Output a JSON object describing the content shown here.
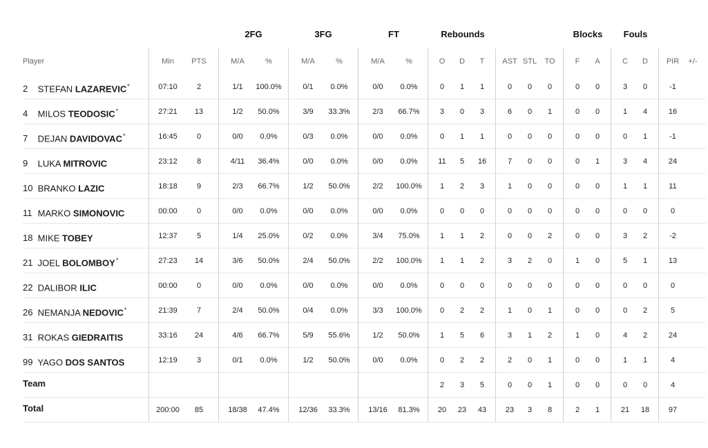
{
  "groups": {
    "fg2": "2FG",
    "fg3": "3FG",
    "ft": "FT",
    "rebounds": "Rebounds",
    "blocks": "Blocks",
    "fouls": "Fouls"
  },
  "columns": {
    "player": "Player",
    "min": "Min",
    "pts": "PTS",
    "fg2_ma": "M/A",
    "fg2_pct": "%",
    "fg3_ma": "M/A",
    "fg3_pct": "%",
    "ft_ma": "M/A",
    "ft_pct": "%",
    "reb_o": "O",
    "reb_d": "D",
    "reb_t": "T",
    "ast": "AST",
    "stl": "STL",
    "to": "TO",
    "blk_f": "F",
    "blk_a": "A",
    "foul_c": "C",
    "foul_d": "D",
    "pir": "PIR",
    "pm": "+/-"
  },
  "players": [
    {
      "num": "2",
      "first": "STEFAN",
      "last": "LAZAREVIC",
      "star": "*",
      "min": "07:10",
      "pts": "2",
      "fg2_ma": "1/1",
      "fg2_pct": "100.0%",
      "fg3_ma": "0/1",
      "fg3_pct": "0.0%",
      "ft_ma": "0/0",
      "ft_pct": "0.0%",
      "reb_o": "0",
      "reb_d": "1",
      "reb_t": "1",
      "ast": "0",
      "stl": "0",
      "to": "0",
      "blk_f": "0",
      "blk_a": "0",
      "foul_c": "3",
      "foul_d": "0",
      "pir": "-1",
      "pm": ""
    },
    {
      "num": "4",
      "first": "MILOS",
      "last": "TEODOSIC",
      "star": "*",
      "min": "27:21",
      "pts": "13",
      "fg2_ma": "1/2",
      "fg2_pct": "50.0%",
      "fg3_ma": "3/9",
      "fg3_pct": "33.3%",
      "ft_ma": "2/3",
      "ft_pct": "66.7%",
      "reb_o": "3",
      "reb_d": "0",
      "reb_t": "3",
      "ast": "6",
      "stl": "0",
      "to": "1",
      "blk_f": "0",
      "blk_a": "0",
      "foul_c": "1",
      "foul_d": "4",
      "pir": "16",
      "pm": ""
    },
    {
      "num": "7",
      "first": "DEJAN",
      "last": "DAVIDOVAC",
      "star": "*",
      "min": "16:45",
      "pts": "0",
      "fg2_ma": "0/0",
      "fg2_pct": "0.0%",
      "fg3_ma": "0/3",
      "fg3_pct": "0.0%",
      "ft_ma": "0/0",
      "ft_pct": "0.0%",
      "reb_o": "0",
      "reb_d": "1",
      "reb_t": "1",
      "ast": "0",
      "stl": "0",
      "to": "0",
      "blk_f": "0",
      "blk_a": "0",
      "foul_c": "0",
      "foul_d": "1",
      "pir": "-1",
      "pm": ""
    },
    {
      "num": "9",
      "first": "LUKA",
      "last": "MITROVIC",
      "star": "",
      "min": "23:12",
      "pts": "8",
      "fg2_ma": "4/11",
      "fg2_pct": "36.4%",
      "fg3_ma": "0/0",
      "fg3_pct": "0.0%",
      "ft_ma": "0/0",
      "ft_pct": "0.0%",
      "reb_o": "11",
      "reb_d": "5",
      "reb_t": "16",
      "ast": "7",
      "stl": "0",
      "to": "0",
      "blk_f": "0",
      "blk_a": "1",
      "foul_c": "3",
      "foul_d": "4",
      "pir": "24",
      "pm": ""
    },
    {
      "num": "10",
      "first": "BRANKO",
      "last": "LAZIC",
      "star": "",
      "min": "18:18",
      "pts": "9",
      "fg2_ma": "2/3",
      "fg2_pct": "66.7%",
      "fg3_ma": "1/2",
      "fg3_pct": "50.0%",
      "ft_ma": "2/2",
      "ft_pct": "100.0%",
      "reb_o": "1",
      "reb_d": "2",
      "reb_t": "3",
      "ast": "1",
      "stl": "0",
      "to": "0",
      "blk_f": "0",
      "blk_a": "0",
      "foul_c": "1",
      "foul_d": "1",
      "pir": "11",
      "pm": ""
    },
    {
      "num": "11",
      "first": "MARKO",
      "last": "SIMONOVIC",
      "star": "",
      "min": "00:00",
      "pts": "0",
      "fg2_ma": "0/0",
      "fg2_pct": "0.0%",
      "fg3_ma": "0/0",
      "fg3_pct": "0.0%",
      "ft_ma": "0/0",
      "ft_pct": "0.0%",
      "reb_o": "0",
      "reb_d": "0",
      "reb_t": "0",
      "ast": "0",
      "stl": "0",
      "to": "0",
      "blk_f": "0",
      "blk_a": "0",
      "foul_c": "0",
      "foul_d": "0",
      "pir": "0",
      "pm": ""
    },
    {
      "num": "18",
      "first": "MIKE",
      "last": "TOBEY",
      "star": "",
      "min": "12:37",
      "pts": "5",
      "fg2_ma": "1/4",
      "fg2_pct": "25.0%",
      "fg3_ma": "0/2",
      "fg3_pct": "0.0%",
      "ft_ma": "3/4",
      "ft_pct": "75.0%",
      "reb_o": "1",
      "reb_d": "1",
      "reb_t": "2",
      "ast": "0",
      "stl": "0",
      "to": "2",
      "blk_f": "0",
      "blk_a": "0",
      "foul_c": "3",
      "foul_d": "2",
      "pir": "-2",
      "pm": ""
    },
    {
      "num": "21",
      "first": "JOEL",
      "last": "BOLOMBOY",
      "star": "*",
      "min": "27:23",
      "pts": "14",
      "fg2_ma": "3/6",
      "fg2_pct": "50.0%",
      "fg3_ma": "2/4",
      "fg3_pct": "50.0%",
      "ft_ma": "2/2",
      "ft_pct": "100.0%",
      "reb_o": "1",
      "reb_d": "1",
      "reb_t": "2",
      "ast": "3",
      "stl": "2",
      "to": "0",
      "blk_f": "1",
      "blk_a": "0",
      "foul_c": "5",
      "foul_d": "1",
      "pir": "13",
      "pm": ""
    },
    {
      "num": "22",
      "first": "DALIBOR",
      "last": "ILIC",
      "star": "",
      "min": "00:00",
      "pts": "0",
      "fg2_ma": "0/0",
      "fg2_pct": "0.0%",
      "fg3_ma": "0/0",
      "fg3_pct": "0.0%",
      "ft_ma": "0/0",
      "ft_pct": "0.0%",
      "reb_o": "0",
      "reb_d": "0",
      "reb_t": "0",
      "ast": "0",
      "stl": "0",
      "to": "0",
      "blk_f": "0",
      "blk_a": "0",
      "foul_c": "0",
      "foul_d": "0",
      "pir": "0",
      "pm": ""
    },
    {
      "num": "26",
      "first": "NEMANJA",
      "last": "NEDOVIC",
      "star": "*",
      "min": "21:39",
      "pts": "7",
      "fg2_ma": "2/4",
      "fg2_pct": "50.0%",
      "fg3_ma": "0/4",
      "fg3_pct": "0.0%",
      "ft_ma": "3/3",
      "ft_pct": "100.0%",
      "reb_o": "0",
      "reb_d": "2",
      "reb_t": "2",
      "ast": "1",
      "stl": "0",
      "to": "1",
      "blk_f": "0",
      "blk_a": "0",
      "foul_c": "0",
      "foul_d": "2",
      "pir": "5",
      "pm": ""
    },
    {
      "num": "31",
      "first": "ROKAS",
      "last": "GIEDRAITIS",
      "star": "",
      "min": "33:16",
      "pts": "24",
      "fg2_ma": "4/6",
      "fg2_pct": "66.7%",
      "fg3_ma": "5/9",
      "fg3_pct": "55.6%",
      "ft_ma": "1/2",
      "ft_pct": "50.0%",
      "reb_o": "1",
      "reb_d": "5",
      "reb_t": "6",
      "ast": "3",
      "stl": "1",
      "to": "2",
      "blk_f": "1",
      "blk_a": "0",
      "foul_c": "4",
      "foul_d": "2",
      "pir": "24",
      "pm": ""
    },
    {
      "num": "99",
      "first": "YAGO",
      "last": "DOS SANTOS",
      "star": "",
      "min": "12:19",
      "pts": "3",
      "fg2_ma": "0/1",
      "fg2_pct": "0.0%",
      "fg3_ma": "1/2",
      "fg3_pct": "50.0%",
      "ft_ma": "0/0",
      "ft_pct": "0.0%",
      "reb_o": "0",
      "reb_d": "2",
      "reb_t": "2",
      "ast": "2",
      "stl": "0",
      "to": "1",
      "blk_f": "0",
      "blk_a": "0",
      "foul_c": "1",
      "foul_d": "1",
      "pir": "4",
      "pm": ""
    }
  ],
  "team": {
    "label": "Team",
    "reb_o": "2",
    "reb_d": "3",
    "reb_t": "5",
    "ast": "0",
    "stl": "0",
    "to": "1",
    "blk_f": "0",
    "blk_a": "0",
    "foul_c": "0",
    "foul_d": "0",
    "pir": "4"
  },
  "total": {
    "label": "Total",
    "min": "200:00",
    "pts": "85",
    "fg2_ma": "18/38",
    "fg2_pct": "47.4%",
    "fg3_ma": "12/36",
    "fg3_pct": "33.3%",
    "ft_ma": "13/16",
    "ft_pct": "81.3%",
    "reb_o": "20",
    "reb_d": "23",
    "reb_t": "43",
    "ast": "23",
    "stl": "3",
    "to": "8",
    "blk_f": "2",
    "blk_a": "1",
    "foul_c": "21",
    "foul_d": "18",
    "pir": "97"
  }
}
